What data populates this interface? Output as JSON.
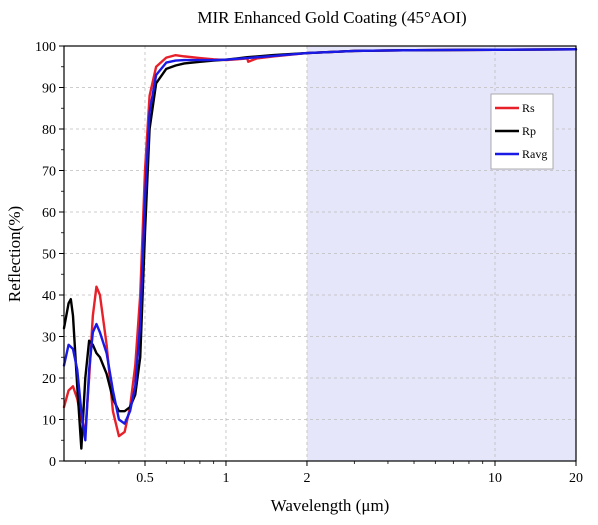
{
  "chart_data": {
    "type": "line",
    "title": "MIR Enhanced Gold Coating (45°AOI)",
    "xlabel": "Wavelength (μm)",
    "ylabel": "Reflection(%)",
    "x_scale": "log",
    "xlim": [
      0.25,
      20
    ],
    "ylim": [
      0,
      100
    ],
    "x_ticks": [
      {
        "value": 0.5,
        "label": "0.5"
      },
      {
        "value": 1,
        "label": "1"
      },
      {
        "value": 2,
        "label": "2"
      },
      {
        "value": 10,
        "label": "10"
      },
      {
        "value": 20,
        "label": "20"
      }
    ],
    "y_ticks": [
      0,
      10,
      20,
      30,
      40,
      50,
      60,
      70,
      80,
      90,
      100
    ],
    "grid": "dashed",
    "legend_position": "top-right",
    "shaded_region": {
      "x_from": 2,
      "x_to": 20,
      "color": "#e6e6fa"
    },
    "series": [
      {
        "name": "Rs",
        "color": "#e8202a",
        "x": [
          0.25,
          0.26,
          0.27,
          0.28,
          0.29,
          0.3,
          0.31,
          0.32,
          0.33,
          0.34,
          0.36,
          0.38,
          0.4,
          0.42,
          0.44,
          0.46,
          0.48,
          0.5,
          0.52,
          0.55,
          0.6,
          0.65,
          0.7,
          0.8,
          0.9,
          1.0,
          1.1,
          1.2,
          1.21,
          1.3,
          1.5,
          2.0,
          3.0,
          5.0,
          10.0,
          20.0
        ],
        "values": [
          13,
          17,
          18,
          15,
          10,
          7,
          20,
          35,
          42,
          40,
          28,
          12,
          6,
          7,
          13,
          23,
          40,
          70,
          88,
          95,
          97.2,
          97.8,
          97.5,
          97.1,
          96.8,
          96.6,
          96.8,
          97.0,
          96.2,
          97.0,
          97.5,
          98.3,
          98.8,
          99.0,
          99.1,
          99.2
        ]
      },
      {
        "name": "Rp",
        "color": "#000000",
        "x": [
          0.25,
          0.26,
          0.265,
          0.27,
          0.28,
          0.29,
          0.3,
          0.31,
          0.32,
          0.33,
          0.34,
          0.36,
          0.38,
          0.4,
          0.42,
          0.44,
          0.46,
          0.48,
          0.5,
          0.52,
          0.55,
          0.6,
          0.65,
          0.7,
          0.8,
          0.9,
          1.0,
          1.1,
          1.2,
          1.5,
          2.0,
          3.0,
          5.0,
          10.0,
          20.0
        ],
        "values": [
          32,
          38,
          39,
          35,
          18,
          3,
          20,
          29,
          28,
          26,
          25,
          21,
          15,
          12,
          12,
          13,
          16,
          25,
          55,
          80,
          91,
          94.5,
          95.3,
          95.8,
          96.2,
          96.5,
          96.7,
          97.0,
          97.3,
          97.8,
          98.3,
          98.8,
          99.0,
          99.1,
          99.2
        ]
      },
      {
        "name": "Ravg",
        "color": "#1a1ae6",
        "x": [
          0.25,
          0.26,
          0.27,
          0.28,
          0.29,
          0.3,
          0.31,
          0.32,
          0.33,
          0.34,
          0.36,
          0.38,
          0.4,
          0.42,
          0.44,
          0.46,
          0.48,
          0.5,
          0.52,
          0.55,
          0.6,
          0.65,
          0.7,
          0.8,
          0.9,
          1.0,
          1.1,
          1.2,
          1.5,
          2.0,
          3.0,
          5.0,
          10.0,
          20.0
        ],
        "values": [
          23,
          28,
          27,
          22,
          12,
          5,
          22,
          31,
          33,
          31,
          26,
          17,
          10,
          9,
          12,
          18,
          33,
          63,
          84,
          93,
          96,
          96.5,
          96.6,
          96.6,
          96.6,
          96.7,
          96.9,
          97.1,
          97.6,
          98.3,
          98.8,
          99.0,
          99.1,
          99.2
        ]
      }
    ]
  }
}
